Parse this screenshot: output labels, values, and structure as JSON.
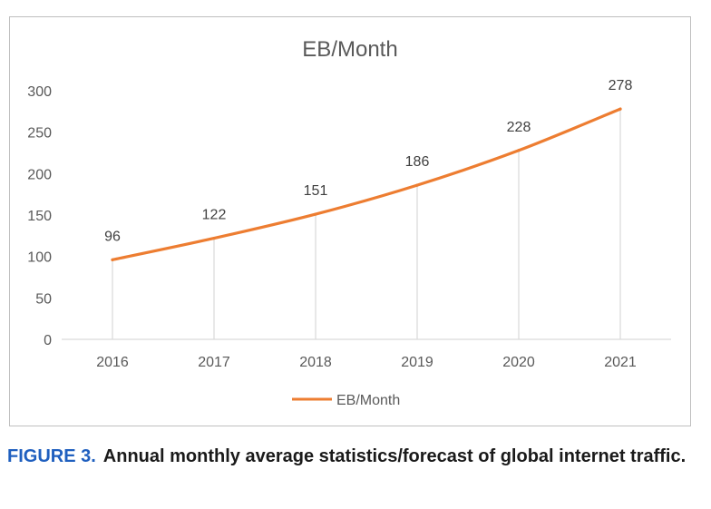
{
  "chart_data": {
    "type": "line",
    "title": "EB/Month",
    "categories": [
      "2016",
      "2017",
      "2018",
      "2019",
      "2020",
      "2021"
    ],
    "series": [
      {
        "name": "EB/Month",
        "values": [
          96,
          122,
          151,
          186,
          228,
          278
        ],
        "color": "#ed7d31"
      }
    ],
    "data_labels": [
      "96",
      "122",
      "151",
      "186",
      "228",
      "278"
    ],
    "y_ticks": [
      "0",
      "50",
      "100",
      "150",
      "200",
      "250",
      "300"
    ],
    "ylim": [
      0,
      300
    ],
    "grid": false,
    "drop_lines": true,
    "legend_position": "bottom",
    "xlabel": "",
    "ylabel": ""
  },
  "caption": {
    "label": "FIGURE 3.",
    "text": "Annual monthly average statistics/forecast of global internet traffic."
  },
  "colors": {
    "series": "#ed7d31",
    "caption_label": "#1f5fbf"
  }
}
